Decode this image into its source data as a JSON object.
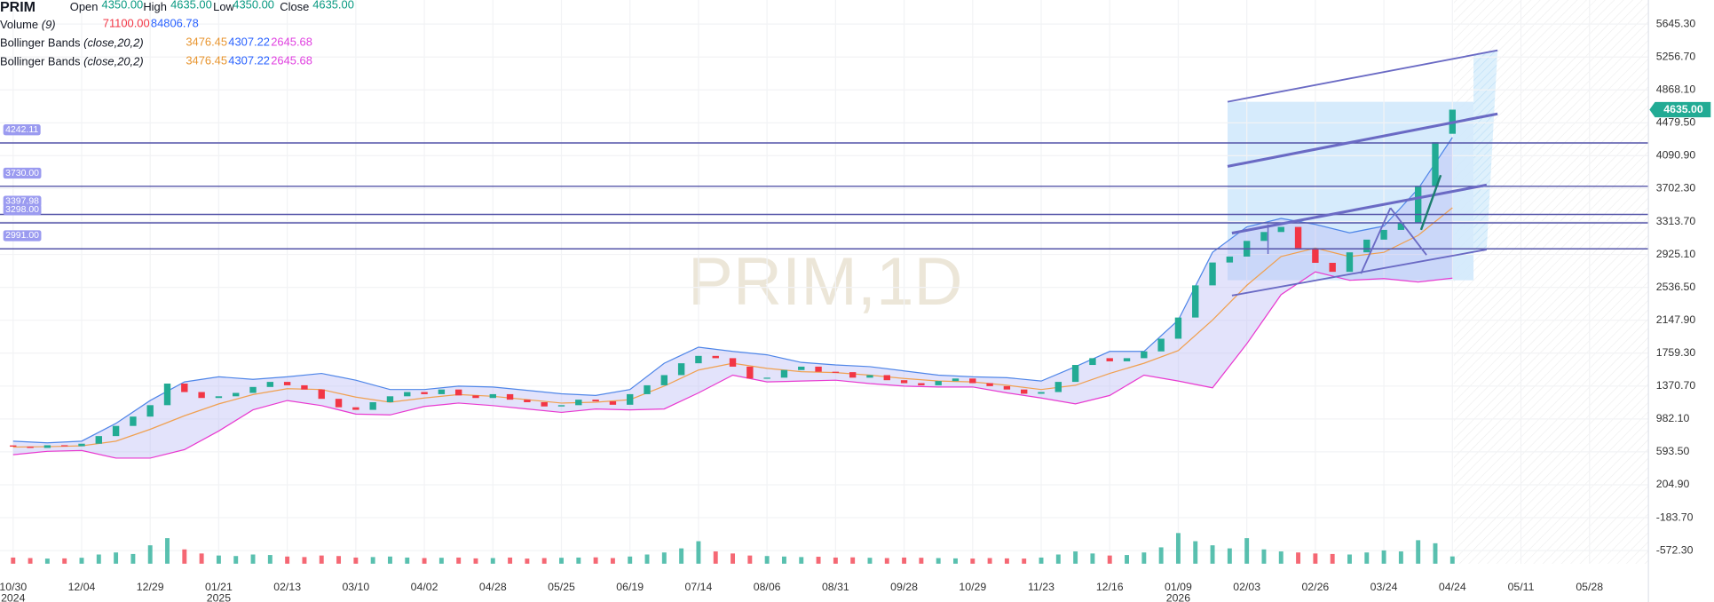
{
  "chart_data": {
    "type": "candlestick",
    "title": "PRIM,1D",
    "categories": [
      "10/30",
      "12/04",
      "12/29",
      "01/21",
      "02/13",
      "03/10",
      "04/02",
      "04/28",
      "05/25",
      "06/19",
      "07/14",
      "08/06",
      "08/31",
      "09/28",
      "10/29",
      "11/23",
      "12/16",
      "01/09",
      "02/03",
      "02/26",
      "03/24",
      "04/24",
      "05/11",
      "05/28"
    ],
    "x_year_labels": [
      "2024",
      null,
      null,
      "2025",
      null,
      null,
      null,
      null,
      null,
      null,
      null,
      null,
      null,
      null,
      null,
      null,
      null,
      "2026",
      null,
      null,
      null,
      null,
      null,
      null
    ],
    "open": [
      670,
      655,
      640,
      672,
      660,
      690,
      780,
      900,
      1010,
      1145,
      1400,
      1300,
      1230,
      1250,
      1290,
      1360,
      1420,
      1380,
      1330,
      1220,
      1120,
      1090,
      1180,
      1250,
      1300,
      1275,
      1330,
      1260,
      1230,
      1275,
      1210,
      1180,
      1130,
      1145,
      1210,
      1190,
      1150,
      1275,
      1380,
      1500,
      1640,
      1727,
      1700,
      1600,
      1460,
      1470,
      1560,
      1600,
      1540,
      1535,
      1470,
      1500,
      1440,
      1405,
      1380,
      1430,
      1460,
      1405,
      1370,
      1330,
      1280,
      1300,
      1420,
      1620,
      1700,
      1663,
      1700,
      1780,
      1930,
      2180,
      2560,
      2830,
      2900,
      3085,
      3190,
      3250,
      3000,
      2826,
      2720,
      2950,
      3100,
      3215,
      3300,
      3730,
      4350
    ],
    "close": [
      655,
      640,
      672,
      660,
      690,
      780,
      900,
      1010,
      1145,
      1400,
      1300,
      1230,
      1250,
      1290,
      1360,
      1420,
      1380,
      1330,
      1220,
      1120,
      1090,
      1180,
      1250,
      1300,
      1275,
      1330,
      1260,
      1230,
      1275,
      1210,
      1180,
      1130,
      1145,
      1210,
      1190,
      1150,
      1275,
      1380,
      1500,
      1640,
      1727,
      1700,
      1600,
      1460,
      1470,
      1560,
      1600,
      1540,
      1535,
      1470,
      1500,
      1440,
      1405,
      1380,
      1430,
      1460,
      1405,
      1370,
      1330,
      1280,
      1300,
      1420,
      1620,
      1700,
      1663,
      1700,
      1780,
      1930,
      2180,
      2560,
      2830,
      2900,
      3085,
      3190,
      3250,
      3000,
      2826,
      2720,
      2950,
      3100,
      3215,
      3300,
      3730,
      4250,
      4635
    ],
    "volume": [
      60000,
      55000,
      50000,
      52000,
      58000,
      90000,
      110000,
      95000,
      180000,
      250000,
      140000,
      100000,
      80000,
      75000,
      90000,
      85000,
      70000,
      65000,
      80000,
      75000,
      60000,
      65000,
      70000,
      60000,
      55000,
      58000,
      60000,
      52000,
      55000,
      60000,
      50000,
      55000,
      58000,
      60000,
      62000,
      55000,
      70000,
      90000,
      110000,
      150000,
      220000,
      120000,
      100000,
      80000,
      75000,
      70000,
      65000,
      68000,
      60000,
      62000,
      58000,
      55000,
      60000,
      58000,
      55000,
      52000,
      50000,
      55000,
      52000,
      50000,
      60000,
      90000,
      120000,
      100000,
      80000,
      85000,
      110000,
      160000,
      300000,
      220000,
      180000,
      150000,
      250000,
      140000,
      120000,
      110000,
      100000,
      95000,
      90000,
      110000,
      130000,
      120000,
      230000,
      200000,
      71100
    ],
    "up_color": "#22ab94",
    "down_color": "#f23645",
    "bollinger": {
      "upper": [
        720,
        700,
        720,
        930,
        1200,
        1420,
        1480,
        1450,
        1480,
        1520,
        1440,
        1330,
        1330,
        1370,
        1360,
        1320,
        1280,
        1260,
        1330,
        1640,
        1830,
        1780,
        1740,
        1650,
        1620,
        1600,
        1550,
        1500,
        1480,
        1470,
        1430,
        1600,
        1780,
        1780,
        2150,
        2950,
        3250,
        3350,
        3280,
        3180,
        3260,
        3700,
        4307.22
      ],
      "middle": [
        650,
        655,
        665,
        720,
        860,
        1020,
        1160,
        1270,
        1340,
        1330,
        1240,
        1180,
        1230,
        1270,
        1250,
        1210,
        1170,
        1180,
        1210,
        1370,
        1560,
        1640,
        1580,
        1540,
        1530,
        1500,
        1460,
        1430,
        1420,
        1380,
        1330,
        1380,
        1520,
        1640,
        1790,
        2150,
        2560,
        2900,
        3000,
        2900,
        2950,
        3150,
        3476.45
      ],
      "lower": [
        560,
        600,
        610,
        520,
        520,
        620,
        840,
        1090,
        1200,
        1140,
        1040,
        1030,
        1130,
        1170,
        1140,
        1100,
        1060,
        1100,
        1090,
        1100,
        1290,
        1500,
        1420,
        1430,
        1440,
        1400,
        1370,
        1360,
        1360,
        1290,
        1230,
        1160,
        1260,
        1500,
        1430,
        1350,
        1870,
        2450,
        2720,
        2620,
        2640,
        2600,
        2645.68
      ],
      "upper_color": "#4f86e8",
      "middle_color": "#f0a050",
      "lower_color": "#e83ad0",
      "fill_color": "#b8b8f6"
    },
    "hlines": [
      {
        "value": 4242.11,
        "label": "4242.11"
      },
      {
        "value": 3730,
        "label": "3730.00"
      },
      {
        "value": 3397.98,
        "label": "3397.98"
      },
      {
        "value": 3298,
        "label": "3298.00"
      },
      {
        "value": 2991,
        "label": "2991.00"
      }
    ],
    "hline_color": "#5454a8",
    "last_price": {
      "value": 4635,
      "label": "4635.00"
    },
    "ylim": [
      -727,
      5930
    ],
    "yticks": [
      {
        "value": 5645.3,
        "label": "5645.30"
      },
      {
        "value": 5256.7,
        "label": "5256.70"
      },
      {
        "value": 4868.1,
        "label": "4868.10"
      },
      {
        "value": 4479.5,
        "label": "4479.50"
      },
      {
        "value": 4090.9,
        "label": "4090.90"
      },
      {
        "value": 3702.3,
        "label": "3702.30"
      },
      {
        "value": 3313.7,
        "label": "3313.70"
      },
      {
        "value": 2925.1,
        "label": "2925.10"
      },
      {
        "value": 2536.5,
        "label": "2536.50"
      },
      {
        "value": 2147.9,
        "label": "2147.90"
      },
      {
        "value": 1759.3,
        "label": "1759.30"
      },
      {
        "value": 1370.7,
        "label": "1370.70"
      },
      {
        "value": 982.1,
        "label": "982.10"
      },
      {
        "value": 593.5,
        "label": "593.50"
      },
      {
        "value": 204.9,
        "label": "204.90"
      },
      {
        "value": -183.7,
        "label": "-183.70"
      },
      {
        "value": -572.3,
        "label": "-572.30"
      }
    ],
    "grid": true
  },
  "legend": {
    "symbol": "PRIM",
    "ohlc": [
      {
        "label": "Open",
        "value": "4350.00"
      },
      {
        "label": "High",
        "value": "4635.00"
      },
      {
        "label": "Low",
        "value": "4350.00"
      },
      {
        "label": "Close",
        "value": "4635.00"
      }
    ],
    "ohlc_value_color": "#089981",
    "indicators": [
      {
        "name": "Volume",
        "params": "(9)",
        "values": [
          "71100.00",
          "84806.78"
        ],
        "value_colors": [
          "#f23645",
          "#2962ff"
        ]
      },
      {
        "name": "Bollinger Bands",
        "params": "(close,20,2)",
        "values": [
          "3476.45",
          "4307.22",
          "2645.68"
        ],
        "value_colors": [
          "#e8952f",
          "#2962ff",
          "#e040e0"
        ]
      },
      {
        "name": "Bollinger Bands",
        "params": "(close,20,2)",
        "values": [
          "3476.45",
          "4307.22",
          "2645.68"
        ],
        "value_colors": [
          "#e8952f",
          "#2962ff",
          "#e040e0"
        ]
      }
    ]
  }
}
